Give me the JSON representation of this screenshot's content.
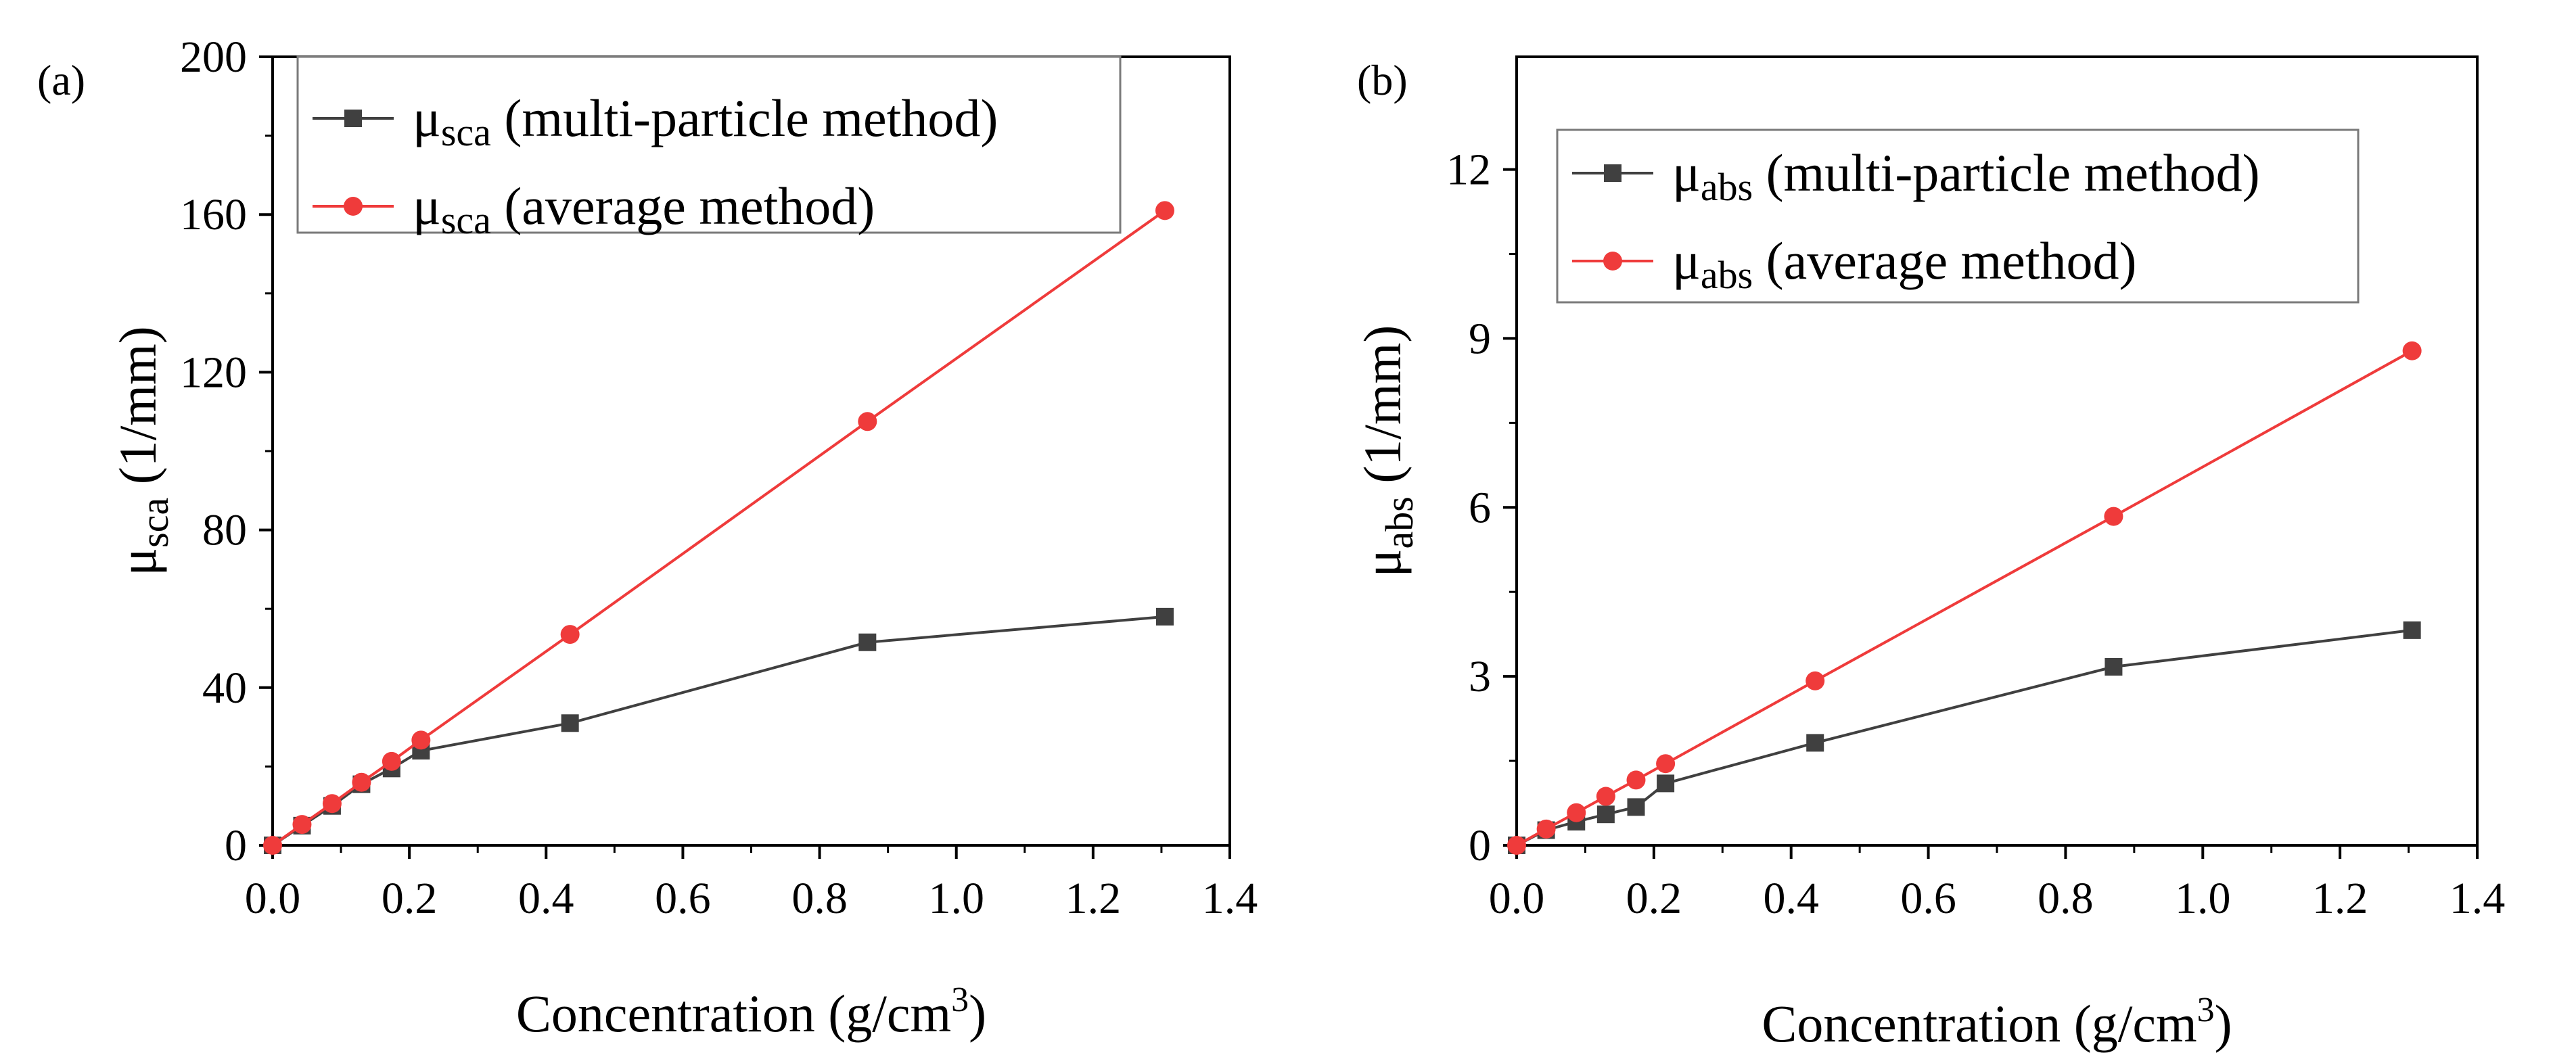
{
  "chart_data": [
    {
      "type": "line",
      "panel_label": "(a)",
      "x_label": {
        "main": "Concentration (g/cm",
        "sup": "3",
        "end": ")"
      },
      "y_label": {
        "main": "μ",
        "sub": "sca",
        "rest": " (1/mm)"
      },
      "xlim": [
        0,
        1.4
      ],
      "ylim": [
        0,
        200
      ],
      "x_ticks": [
        0.0,
        0.2,
        0.4,
        0.6,
        0.8,
        1.0,
        1.2,
        1.4
      ],
      "x_tick_labels": [
        "0.0",
        "0.2",
        "0.4",
        "0.6",
        "0.8",
        "1.0",
        "1.2",
        "1.4"
      ],
      "y_ticks": [
        0,
        40,
        80,
        120,
        160,
        200
      ],
      "y_tick_labels": [
        "0",
        "40",
        "80",
        "120",
        "160",
        "200"
      ],
      "legend_position": "top-left",
      "series": [
        {
          "name": "μsca (multi-particle method)",
          "legend": {
            "mu": "μ",
            "sub": "sca",
            "rest": " (multi-particle method)"
          },
          "color": "#404040",
          "marker": "square",
          "x": [
            0,
            0.043,
            0.087,
            0.13,
            0.174,
            0.217,
            0.435,
            0.87,
            1.305
          ],
          "y": [
            0,
            5,
            10,
            15.5,
            19.5,
            24,
            31,
            51.5,
            58
          ]
        },
        {
          "name": "μsca (average method)",
          "legend": {
            "mu": "μ",
            "sub": "sca",
            "rest": " (average method)"
          },
          "color": "#ef3b3b",
          "marker": "circle",
          "x": [
            0,
            0.043,
            0.087,
            0.13,
            0.174,
            0.217,
            0.435,
            0.87,
            1.305
          ],
          "y": [
            0,
            5.3,
            10.6,
            16,
            21.3,
            26.7,
            53.5,
            107.5,
            161
          ]
        }
      ]
    },
    {
      "type": "line",
      "panel_label": "(b)",
      "x_label": {
        "main": "Concentration (g/cm",
        "sup": "3",
        "end": ")"
      },
      "y_label": {
        "main": "μ",
        "sub": "abs",
        "rest": " (1/mm)"
      },
      "xlim": [
        0,
        1.4
      ],
      "ylim": [
        0,
        14
      ],
      "x_ticks": [
        0.0,
        0.2,
        0.4,
        0.6,
        0.8,
        1.0,
        1.2,
        1.4
      ],
      "x_tick_labels": [
        "0.0",
        "0.2",
        "0.4",
        "0.6",
        "0.8",
        "1.0",
        "1.2",
        "1.4"
      ],
      "y_ticks": [
        0,
        3,
        6,
        9,
        12
      ],
      "y_tick_labels": [
        "0",
        "3",
        "6",
        "9",
        "12"
      ],
      "legend_position": "top-left",
      "series": [
        {
          "name": "μabs (multi-particle method)",
          "legend": {
            "mu": "μ",
            "sub": "abs",
            "rest": " (multi-particle method)"
          },
          "color": "#404040",
          "marker": "square",
          "x": [
            0,
            0.043,
            0.087,
            0.13,
            0.174,
            0.217,
            0.435,
            0.87,
            1.305
          ],
          "y": [
            0,
            0.27,
            0.42,
            0.55,
            0.68,
            1.1,
            1.82,
            3.17,
            3.82
          ]
        },
        {
          "name": "μabs (average method)",
          "legend": {
            "mu": "μ",
            "sub": "abs",
            "rest": " (average method)"
          },
          "color": "#ef3b3b",
          "marker": "circle",
          "x": [
            0,
            0.043,
            0.087,
            0.13,
            0.174,
            0.217,
            0.435,
            0.87,
            1.305
          ],
          "y": [
            0,
            0.29,
            0.58,
            0.87,
            1.16,
            1.45,
            2.92,
            5.84,
            8.78
          ]
        }
      ]
    }
  ]
}
